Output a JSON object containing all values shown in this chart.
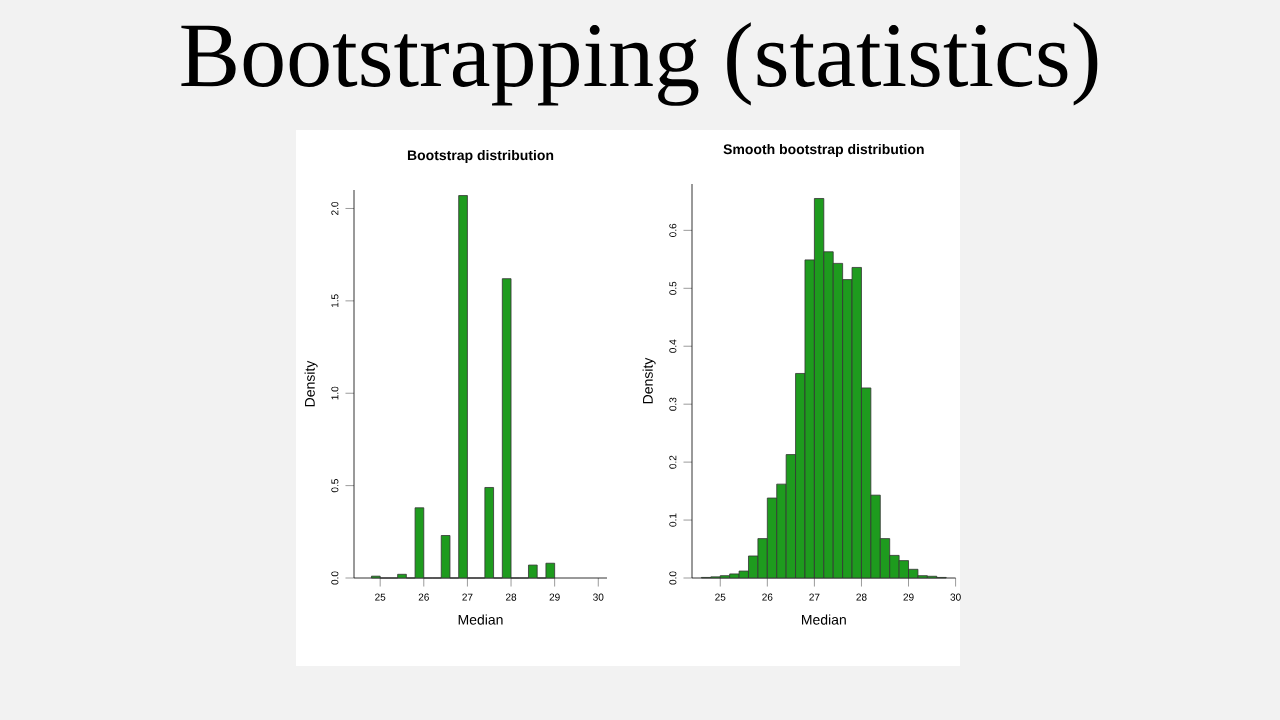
{
  "chart_data": [
    {
      "type": "other",
      "title": "Bootstrapping (statistics)"
    },
    {
      "type": "histogram",
      "title": "Bootstrap distribution",
      "xlabel": "Median",
      "ylabel": "Density",
      "color": "#1e9b1e",
      "bins": [
        24.8,
        25.0,
        25.2,
        25.4,
        25.6,
        25.8,
        26.0,
        26.2,
        26.4,
        26.6,
        26.8,
        27.0,
        27.2,
        27.4,
        27.6,
        27.8,
        28.0,
        28.2,
        28.4,
        28.6,
        28.8,
        29.0
      ],
      "values": [
        0.01,
        0,
        0,
        0.02,
        0,
        0.38,
        0,
        0,
        0.23,
        0,
        2.07,
        0,
        0,
        0.49,
        0,
        1.62,
        0,
        0,
        0.07,
        0,
        0.08
      ],
      "xlim": [
        24.4,
        30.2
      ],
      "ylim": [
        0,
        2.1
      ],
      "xticks": [
        25,
        26,
        27,
        28,
        29,
        30
      ],
      "yticks": [
        {
          "value": 0,
          "label": "0.0"
        },
        {
          "value": 0.5,
          "label": "0.5"
        },
        {
          "value": 1,
          "label": "1.0"
        },
        {
          "value": 1.5,
          "label": "1.5"
        },
        {
          "value": 2,
          "label": "2.0"
        }
      ],
      "grid": false
    },
    {
      "type": "histogram",
      "title": "Smooth bootstrap distribution",
      "xlabel": "Median",
      "ylabel": "Density",
      "color": "#1e9b1e",
      "bins": [
        24.6,
        24.8,
        25.0,
        25.2,
        25.4,
        25.6,
        25.8,
        26.0,
        26.2,
        26.4,
        26.6,
        26.8,
        27.0,
        27.2,
        27.4,
        27.6,
        27.8,
        28.0,
        28.2,
        28.4,
        28.6,
        28.8,
        29.0,
        29.2,
        29.4,
        29.6,
        29.8
      ],
      "values": [
        0.001,
        0.002,
        0.004,
        0.007,
        0.012,
        0.038,
        0.068,
        0.138,
        0.162,
        0.213,
        0.353,
        0.549,
        0.655,
        0.563,
        0.543,
        0.515,
        0.536,
        0.328,
        0.143,
        0.068,
        0.039,
        0.03,
        0.015,
        0.004,
        0.003,
        0.001
      ],
      "xlim": [
        24.4,
        30.0
      ],
      "ylim": [
        0,
        0.68
      ],
      "xticks": [
        25,
        26,
        27,
        28,
        29,
        30
      ],
      "yticks": [
        {
          "value": 0,
          "label": "0.0"
        },
        {
          "value": 0.1,
          "label": "0.1"
        },
        {
          "value": 0.2,
          "label": "0.2"
        },
        {
          "value": 0.3,
          "label": "0.3"
        },
        {
          "value": 0.4,
          "label": "0.4"
        },
        {
          "value": 0.5,
          "label": "0.5"
        },
        {
          "value": 0.6,
          "label": "0.6"
        }
      ],
      "grid": false
    }
  ]
}
